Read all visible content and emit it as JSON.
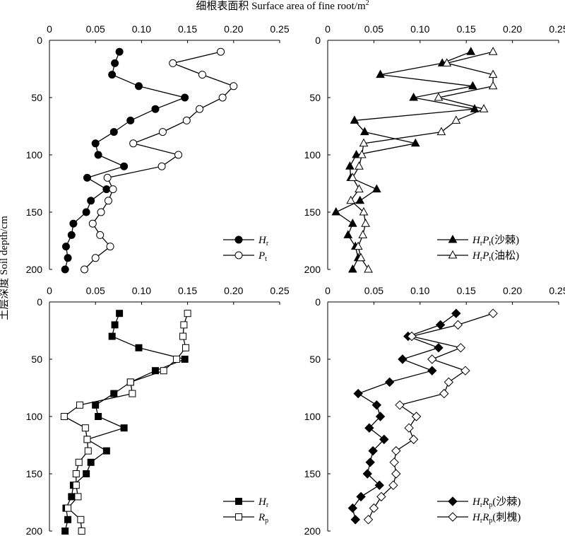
{
  "figure": {
    "top_title": "细根表面积 Surface area of fine root/m",
    "top_title_sup": "2",
    "y_label": "土层深度 Soil depth/cm"
  },
  "chart_data": [
    {
      "type": "line",
      "x_ticks": [
        "0",
        "0.05",
        "0.10",
        "0.15",
        "0.20",
        "0.25"
      ],
      "y_ticks": [
        "0",
        "50",
        "100",
        "150",
        "200"
      ],
      "xlim": [
        0,
        0.25
      ],
      "ylim": [
        0,
        200
      ],
      "y_inverted": true,
      "x_axis_position": "top",
      "series": [
        {
          "name": "Hr",
          "name_main": "H",
          "name_sub": "r",
          "name_suffix": "",
          "marker": "circle",
          "filled": true,
          "points": [
            [
              0.076,
              10
            ],
            [
              0.071,
              20
            ],
            [
              0.068,
              30
            ],
            [
              0.097,
              40
            ],
            [
              0.147,
              50
            ],
            [
              0.115,
              60
            ],
            [
              0.088,
              70
            ],
            [
              0.07,
              80
            ],
            [
              0.05,
              90
            ],
            [
              0.053,
              100
            ],
            [
              0.081,
              110
            ],
            [
              0.041,
              120
            ],
            [
              0.062,
              130
            ],
            [
              0.045,
              140
            ],
            [
              0.04,
              150
            ],
            [
              0.026,
              160
            ],
            [
              0.024,
              170
            ],
            [
              0.018,
              180
            ],
            [
              0.02,
              190
            ],
            [
              0.017,
              200
            ]
          ]
        },
        {
          "name": "Pt",
          "name_main": "P",
          "name_sub": "t",
          "name_suffix": "",
          "marker": "circle",
          "filled": false,
          "points": [
            [
              0.186,
              10
            ],
            [
              0.134,
              20
            ],
            [
              0.166,
              30
            ],
            [
              0.2,
              40
            ],
            [
              0.188,
              50
            ],
            [
              0.163,
              60
            ],
            [
              0.149,
              70
            ],
            [
              0.123,
              80
            ],
            [
              0.091,
              90
            ],
            [
              0.14,
              100
            ],
            [
              0.122,
              110
            ],
            [
              0.063,
              120
            ],
            [
              0.069,
              130
            ],
            [
              0.064,
              140
            ],
            [
              0.056,
              150
            ],
            [
              0.047,
              160
            ],
            [
              0.055,
              170
            ],
            [
              0.066,
              180
            ],
            [
              0.05,
              190
            ],
            [
              0.038,
              200
            ]
          ]
        }
      ]
    },
    {
      "type": "line",
      "x_ticks": [
        "0",
        "0.05",
        "0.10",
        "0.15",
        "0.20",
        "0.25"
      ],
      "y_ticks": [
        "0",
        "50",
        "100",
        "150",
        "200"
      ],
      "xlim": [
        0,
        0.25
      ],
      "ylim": [
        0,
        200
      ],
      "y_inverted": true,
      "x_axis_position": "top",
      "series": [
        {
          "name": "HrPt(沙棘)",
          "name_main": "H",
          "name_sub": "r",
          "name_main2": "P",
          "name_sub2": "t",
          "name_suffix": "(沙棘)",
          "marker": "triangle",
          "filled": true,
          "points": [
            [
              0.155,
              10
            ],
            [
              0.124,
              20
            ],
            [
              0.057,
              30
            ],
            [
              0.157,
              40
            ],
            [
              0.093,
              50
            ],
            [
              0.159,
              60
            ],
            [
              0.029,
              70
            ],
            [
              0.04,
              80
            ],
            [
              0.095,
              90
            ],
            [
              0.031,
              100
            ],
            [
              0.024,
              110
            ],
            [
              0.025,
              120
            ],
            [
              0.053,
              130
            ],
            [
              0.035,
              140
            ],
            [
              0.009,
              150
            ],
            [
              0.027,
              160
            ],
            [
              0.022,
              170
            ],
            [
              0.03,
              180
            ],
            [
              0.033,
              190
            ],
            [
              0.027,
              200
            ]
          ]
        },
        {
          "name": "HrPt(油松)",
          "name_main": "H",
          "name_sub": "r",
          "name_main2": "P",
          "name_sub2": "t",
          "name_suffix": "(油松)",
          "marker": "triangle",
          "filled": false,
          "points": [
            [
              0.179,
              10
            ],
            [
              0.129,
              20
            ],
            [
              0.179,
              30
            ],
            [
              0.179,
              40
            ],
            [
              0.12,
              50
            ],
            [
              0.169,
              60
            ],
            [
              0.139,
              70
            ],
            [
              0.123,
              80
            ],
            [
              0.039,
              90
            ],
            [
              0.037,
              100
            ],
            [
              0.034,
              110
            ],
            [
              0.027,
              120
            ],
            [
              0.034,
              130
            ],
            [
              0.025,
              140
            ],
            [
              0.039,
              150
            ],
            [
              0.041,
              160
            ],
            [
              0.038,
              170
            ],
            [
              0.033,
              180
            ],
            [
              0.036,
              190
            ],
            [
              0.044,
              200
            ]
          ]
        }
      ]
    },
    {
      "type": "line",
      "x_ticks": [
        "0",
        "0.05",
        "0.10",
        "0.15",
        "0.20",
        "0.25"
      ],
      "y_ticks": [
        "0",
        "50",
        "100",
        "150",
        "200"
      ],
      "xlim": [
        0,
        0.25
      ],
      "ylim": [
        0,
        200
      ],
      "y_inverted": true,
      "x_axis_position": "top",
      "series": [
        {
          "name": "Hr",
          "name_main": "H",
          "name_sub": "r",
          "name_suffix": "",
          "marker": "square",
          "filled": true,
          "points": [
            [
              0.076,
              10
            ],
            [
              0.071,
              20
            ],
            [
              0.068,
              30
            ],
            [
              0.097,
              40
            ],
            [
              0.147,
              50
            ],
            [
              0.115,
              60
            ],
            [
              0.088,
              70
            ],
            [
              0.07,
              80
            ],
            [
              0.05,
              90
            ],
            [
              0.053,
              100
            ],
            [
              0.081,
              110
            ],
            [
              0.041,
              120
            ],
            [
              0.062,
              130
            ],
            [
              0.045,
              140
            ],
            [
              0.04,
              150
            ],
            [
              0.026,
              160
            ],
            [
              0.024,
              170
            ],
            [
              0.018,
              180
            ],
            [
              0.02,
              190
            ],
            [
              0.017,
              200
            ]
          ]
        },
        {
          "name": "Rp",
          "name_main": "R",
          "name_sub": "p",
          "name_suffix": "",
          "marker": "square",
          "filled": false,
          "points": [
            [
              0.15,
              10
            ],
            [
              0.146,
              20
            ],
            [
              0.145,
              30
            ],
            [
              0.148,
              40
            ],
            [
              0.138,
              50
            ],
            [
              0.124,
              60
            ],
            [
              0.088,
              70
            ],
            [
              0.09,
              80
            ],
            [
              0.033,
              90
            ],
            [
              0.016,
              100
            ],
            [
              0.039,
              110
            ],
            [
              0.041,
              120
            ],
            [
              0.042,
              130
            ],
            [
              0.032,
              140
            ],
            [
              0.029,
              150
            ],
            [
              0.029,
              160
            ],
            [
              0.031,
              170
            ],
            [
              0.02,
              180
            ],
            [
              0.034,
              190
            ],
            [
              0.035,
              200
            ]
          ]
        }
      ]
    },
    {
      "type": "line",
      "x_ticks": [
        "0",
        "0.05",
        "0.10",
        "0.15",
        "0.20",
        "0.25"
      ],
      "y_ticks": [
        "0",
        "50",
        "100",
        "150",
        "200"
      ],
      "xlim": [
        0,
        0.25
      ],
      "ylim": [
        0,
        200
      ],
      "y_inverted": true,
      "x_axis_position": "top",
      "series": [
        {
          "name": "HrRp(沙棘)",
          "name_main": "H",
          "name_sub": "r",
          "name_main2": "R",
          "name_sub2": "p",
          "name_suffix": "(沙棘)",
          "marker": "diamond",
          "filled": true,
          "points": [
            [
              0.139,
              10
            ],
            [
              0.122,
              20
            ],
            [
              0.087,
              30
            ],
            [
              0.12,
              40
            ],
            [
              0.081,
              50
            ],
            [
              0.113,
              60
            ],
            [
              0.067,
              70
            ],
            [
              0.033,
              80
            ],
            [
              0.053,
              90
            ],
            [
              0.057,
              100
            ],
            [
              0.045,
              110
            ],
            [
              0.061,
              120
            ],
            [
              0.049,
              130
            ],
            [
              0.046,
              140
            ],
            [
              0.043,
              150
            ],
            [
              0.056,
              160
            ],
            [
              0.036,
              170
            ],
            [
              0.027,
              180
            ],
            [
              0.03,
              190
            ]
          ]
        },
        {
          "name": "HrRp(刺槐)",
          "name_main": "H",
          "name_sub": "r",
          "name_main2": "R",
          "name_sub2": "p",
          "name_suffix": "(刺槐)",
          "marker": "diamond",
          "filled": false,
          "points": [
            [
              0.179,
              10
            ],
            [
              0.141,
              20
            ],
            [
              0.091,
              30
            ],
            [
              0.144,
              40
            ],
            [
              0.113,
              50
            ],
            [
              0.149,
              60
            ],
            [
              0.131,
              70
            ],
            [
              0.126,
              80
            ],
            [
              0.078,
              90
            ],
            [
              0.096,
              100
            ],
            [
              0.088,
              110
            ],
            [
              0.093,
              120
            ],
            [
              0.074,
              130
            ],
            [
              0.072,
              140
            ],
            [
              0.074,
              150
            ],
            [
              0.071,
              160
            ],
            [
              0.058,
              170
            ],
            [
              0.05,
              180
            ],
            [
              0.044,
              190
            ]
          ]
        }
      ]
    }
  ]
}
